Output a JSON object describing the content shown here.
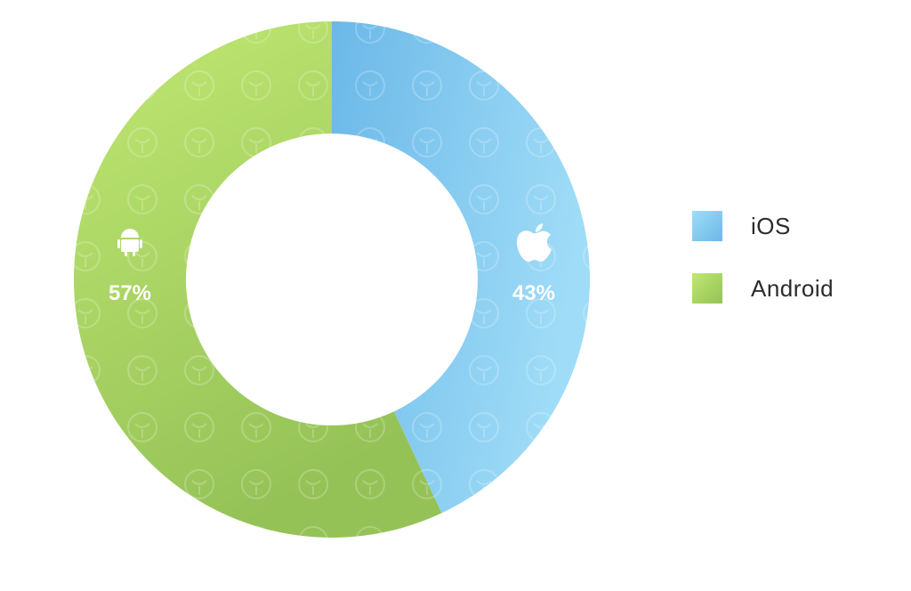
{
  "chart_data": {
    "type": "pie",
    "donut": true,
    "start_angle_deg": 0,
    "direction": "clockwise",
    "categories": [
      "iOS",
      "Android"
    ],
    "values": [
      43,
      57
    ],
    "value_labels": [
      "43%",
      "57%"
    ],
    "icons": [
      "apple-icon",
      "android-icon"
    ],
    "legend_placement": "right",
    "colors": {
      "iOS": [
        "#6bb8e8",
        "#99dbf7"
      ],
      "Android": [
        "#9cc95a",
        "#bfe870"
      ]
    }
  }
}
